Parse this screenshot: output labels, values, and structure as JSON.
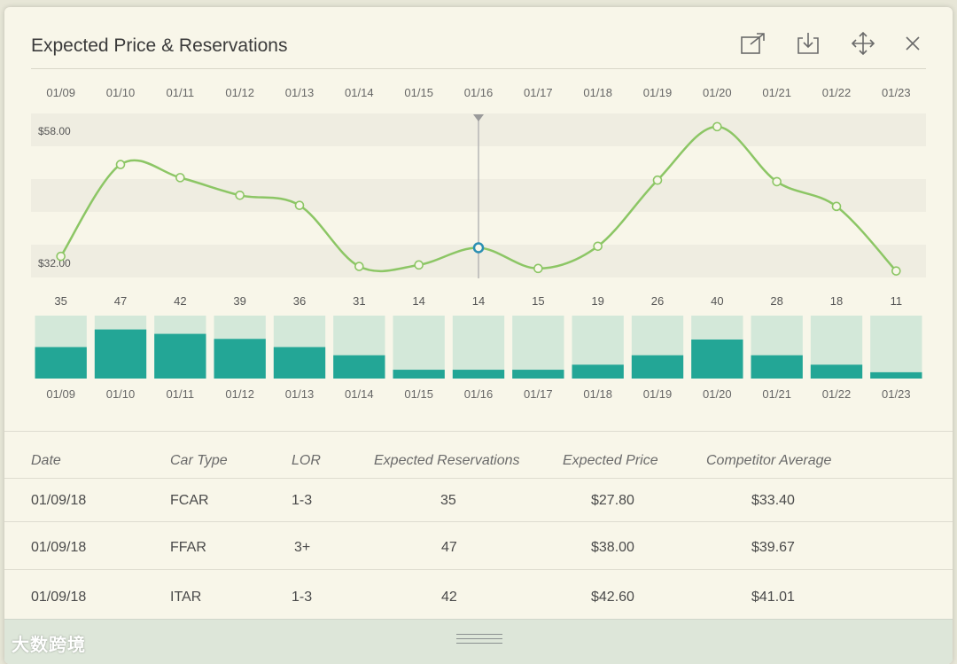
{
  "window": {
    "title": "Expected Price & Reservations",
    "tools": [
      {
        "icon": "open-external-icon"
      },
      {
        "icon": "download-icon"
      },
      {
        "icon": "move-icon"
      },
      {
        "icon": "close-icon"
      }
    ]
  },
  "colors": {
    "line": "#8cc665",
    "point_fill": "#f8f6e9",
    "selected_point": "#2b8fb3",
    "bar_fill": "#23a696",
    "bar_track": "#d3e8d9",
    "band": "#efede1"
  },
  "chart_data": [
    {
      "type": "line",
      "x": [
        "01/09",
        "01/10",
        "01/11",
        "01/12",
        "01/13",
        "01/14",
        "01/15",
        "01/16",
        "01/17",
        "01/18",
        "01/19",
        "01/20",
        "01/21",
        "01/22",
        "01/23"
      ],
      "values": [
        33.2,
        51.4,
        48.8,
        45.3,
        43.3,
        31.2,
        31.5,
        34.9,
        30.8,
        35.2,
        48.3,
        58.9,
        48.0,
        43.1,
        30.3
      ],
      "ylim": [
        32,
        58
      ],
      "y_tick_labels": [
        "$58.00",
        "$32.00"
      ],
      "selected": "01/16"
    },
    {
      "type": "bar",
      "categories": [
        "01/09",
        "01/10",
        "01/11",
        "01/12",
        "01/13",
        "01/14",
        "01/15",
        "01/16",
        "01/17",
        "01/18",
        "01/19",
        "01/20",
        "01/21",
        "01/22",
        "01/23"
      ],
      "values": [
        35,
        47,
        42,
        39,
        36,
        31,
        14,
        14,
        15,
        19,
        26,
        40,
        28,
        18,
        11
      ],
      "fill_fraction": [
        0.5,
        0.78,
        0.71,
        0.63,
        0.5,
        0.37,
        0.14,
        0.14,
        0.14,
        0.22,
        0.37,
        0.62,
        0.37,
        0.22,
        0.1
      ]
    }
  ],
  "table": {
    "headers": [
      "Date",
      "Car Type",
      "LOR",
      "Expected Reservations",
      "Expected Price",
      "Competitor Average"
    ],
    "rows": [
      [
        "01/09/18",
        "FCAR",
        "1-3",
        "35",
        "$27.80",
        "$33.40"
      ],
      [
        "01/09/18",
        "FFAR",
        "3+",
        "47",
        "$38.00",
        "$39.67"
      ],
      [
        "01/09/18",
        "ITAR",
        "1-3",
        "42",
        "$42.60",
        "$41.01"
      ]
    ]
  },
  "watermark": "大数跨境"
}
